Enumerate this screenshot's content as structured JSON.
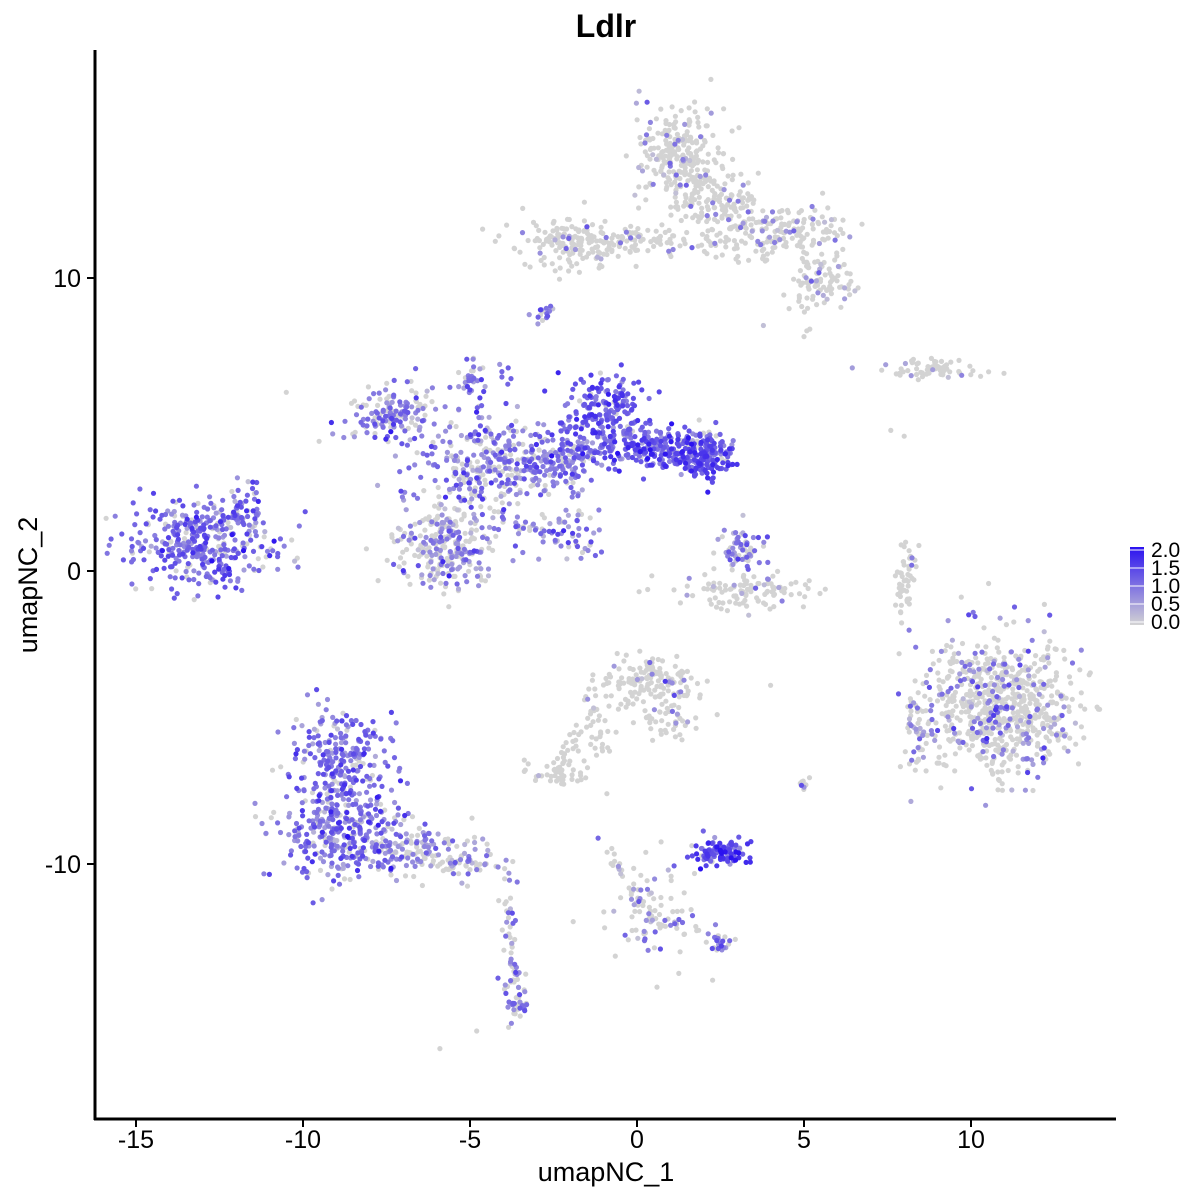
{
  "chart_data": {
    "type": "scatter",
    "title": "Ldlr",
    "xlabel": "umapNC_1",
    "ylabel": "umapNC_2",
    "xlim": [
      -16.3,
      14.4
    ],
    "ylim": [
      -18.5,
      17.7
    ],
    "x_ticks": [
      -15,
      -10,
      -5,
      0,
      5,
      10
    ],
    "x_tick_labels": [
      "-15",
      "-10",
      "-5",
      "0",
      "5",
      "10"
    ],
    "y_ticks": [
      -10,
      0,
      10
    ],
    "y_tick_labels": [
      "-10",
      "0",
      "10"
    ],
    "grid": false,
    "legend": {
      "position": "right",
      "type": "colorbar",
      "range": [
        0,
        2.0
      ],
      "ticks": [
        0.0,
        0.5,
        1.0,
        1.5,
        2.0
      ],
      "tick_labels": [
        "0.0",
        "0.5",
        "1.0",
        "1.5",
        "2.0"
      ],
      "low_color": "#d3d3d3",
      "high_color": "#2b12f0"
    },
    "clusters": [
      {
        "cx": -13.0,
        "cy": 1.0,
        "sx": 1.2,
        "sy": 0.9,
        "n": 380,
        "expr_frac": 0.85,
        "mean_expr": 1.1
      },
      {
        "cx": -11.8,
        "cy": 2.2,
        "sx": 0.3,
        "sy": 0.4,
        "n": 40,
        "expr_frac": 0.8,
        "mean_expr": 1.0
      },
      {
        "cx": -8.8,
        "cy": -6.5,
        "sx": 0.9,
        "sy": 1.2,
        "n": 260,
        "expr_frac": 0.85,
        "mean_expr": 1.0
      },
      {
        "cx": -8.8,
        "cy": -9.0,
        "sx": 1.2,
        "sy": 0.9,
        "n": 300,
        "expr_frac": 0.85,
        "mean_expr": 1.0
      },
      {
        "cx": -6.5,
        "cy": -9.5,
        "sx": 1.0,
        "sy": 0.5,
        "n": 90,
        "expr_frac": 0.5,
        "mean_expr": 0.8
      },
      {
        "cx": -4.9,
        "cy": -10.0,
        "sx": 0.5,
        "sy": 0.3,
        "n": 30,
        "expr_frac": 0.4,
        "mean_expr": 0.8
      },
      {
        "cx": -3.6,
        "cy": -14.5,
        "sx": 0.25,
        "sy": 0.7,
        "n": 40,
        "expr_frac": 0.6,
        "mean_expr": 0.9
      },
      {
        "cx": -3.8,
        "cy": -11.8,
        "sx": 0.2,
        "sy": 0.9,
        "n": 14,
        "expr_frac": 0.4,
        "mean_expr": 0.7
      },
      {
        "cx": -5.7,
        "cy": 1.0,
        "sx": 0.9,
        "sy": 0.9,
        "n": 280,
        "expr_frac": 0.45,
        "mean_expr": 0.8
      },
      {
        "cx": -7.2,
        "cy": 5.3,
        "sx": 0.9,
        "sy": 0.6,
        "n": 150,
        "expr_frac": 0.75,
        "mean_expr": 0.9
      },
      {
        "cx": -4.6,
        "cy": 3.5,
        "sx": 1.2,
        "sy": 0.8,
        "n": 240,
        "expr_frac": 0.7,
        "mean_expr": 0.9
      },
      {
        "cx": -1.0,
        "cy": 5.3,
        "sx": 0.7,
        "sy": 0.8,
        "n": 220,
        "expr_frac": 0.9,
        "mean_expr": 1.2
      },
      {
        "cx": -2.4,
        "cy": 3.7,
        "sx": 0.9,
        "sy": 0.6,
        "n": 160,
        "expr_frac": 0.8,
        "mean_expr": 1.0
      },
      {
        "cx": 0.5,
        "cy": 4.2,
        "sx": 0.9,
        "sy": 0.4,
        "n": 200,
        "expr_frac": 0.9,
        "mean_expr": 1.2
      },
      {
        "cx": 2.0,
        "cy": 4.0,
        "sx": 0.6,
        "sy": 0.5,
        "n": 180,
        "expr_frac": 0.9,
        "mean_expr": 1.3
      },
      {
        "cx": -5.0,
        "cy": 6.6,
        "sx": 0.2,
        "sy": 0.5,
        "n": 25,
        "expr_frac": 0.7,
        "mean_expr": 0.9
      },
      {
        "cx": -2.7,
        "cy": 8.8,
        "sx": 0.2,
        "sy": 0.25,
        "n": 15,
        "expr_frac": 0.8,
        "mean_expr": 1.0
      },
      {
        "cx": -2.0,
        "cy": 1.5,
        "sx": 0.6,
        "sy": 0.5,
        "n": 40,
        "expr_frac": 0.6,
        "mean_expr": 0.9
      },
      {
        "cx": 3.1,
        "cy": 0.8,
        "sx": 0.4,
        "sy": 0.5,
        "n": 60,
        "expr_frac": 0.6,
        "mean_expr": 0.9
      },
      {
        "cx": 3.2,
        "cy": -0.7,
        "sx": 1.2,
        "sy": 0.35,
        "n": 110,
        "expr_frac": 0.15,
        "mean_expr": 0.6
      },
      {
        "cx": 1.3,
        "cy": 14.2,
        "sx": 0.8,
        "sy": 1.1,
        "n": 260,
        "expr_frac": 0.15,
        "mean_expr": 0.7
      },
      {
        "cx": 2.6,
        "cy": 12.4,
        "sx": 0.7,
        "sy": 0.7,
        "n": 120,
        "expr_frac": 0.15,
        "mean_expr": 0.7
      },
      {
        "cx": 4.5,
        "cy": 11.5,
        "sx": 1.0,
        "sy": 0.6,
        "n": 160,
        "expr_frac": 0.15,
        "mean_expr": 0.7
      },
      {
        "cx": 5.5,
        "cy": 9.8,
        "sx": 0.7,
        "sy": 0.6,
        "n": 90,
        "expr_frac": 0.2,
        "mean_expr": 0.7
      },
      {
        "cx": -2.0,
        "cy": 11.2,
        "sx": 0.9,
        "sy": 0.6,
        "n": 140,
        "expr_frac": 0.1,
        "mean_expr": 0.7
      },
      {
        "cx": 0.0,
        "cy": 11.3,
        "sx": 1.0,
        "sy": 0.3,
        "n": 70,
        "expr_frac": 0.1,
        "mean_expr": 0.7
      },
      {
        "cx": 11.0,
        "cy": -4.6,
        "sx": 1.3,
        "sy": 1.3,
        "n": 720,
        "expr_frac": 0.22,
        "mean_expr": 0.9
      },
      {
        "cx": 8.5,
        "cy": -5.5,
        "sx": 0.4,
        "sy": 0.9,
        "n": 60,
        "expr_frac": 0.3,
        "mean_expr": 0.8
      },
      {
        "cx": 0.5,
        "cy": -3.8,
        "sx": 0.9,
        "sy": 0.5,
        "n": 150,
        "expr_frac": 0.12,
        "mean_expr": 0.8
      },
      {
        "cx": 1.0,
        "cy": -5.2,
        "sx": 0.4,
        "sy": 0.4,
        "n": 40,
        "expr_frac": 0.15,
        "mean_expr": 0.8
      },
      {
        "cx": -2.4,
        "cy": -6.9,
        "sx": 0.5,
        "sy": 0.25,
        "n": 50,
        "expr_frac": 0.05,
        "mean_expr": 0.7
      },
      {
        "cx": -1.2,
        "cy": -5.3,
        "sx": 0.3,
        "sy": 0.8,
        "n": 30,
        "expr_frac": 0.1,
        "mean_expr": 0.7
      },
      {
        "cx": 2.5,
        "cy": -9.6,
        "sx": 0.5,
        "sy": 0.25,
        "n": 110,
        "expr_frac": 0.95,
        "mean_expr": 1.4
      },
      {
        "cx": 0.5,
        "cy": -11.6,
        "sx": 1.0,
        "sy": 1.2,
        "n": 70,
        "expr_frac": 0.35,
        "mean_expr": 0.8
      },
      {
        "cx": 2.5,
        "cy": -12.7,
        "sx": 0.3,
        "sy": 0.2,
        "n": 20,
        "expr_frac": 0.7,
        "mean_expr": 0.9
      },
      {
        "cx": 9.0,
        "cy": 6.9,
        "sx": 1.0,
        "sy": 0.2,
        "n": 70,
        "expr_frac": 0.12,
        "mean_expr": 0.7
      },
      {
        "cx": 8.0,
        "cy": -0.2,
        "sx": 0.15,
        "sy": 1.0,
        "n": 30,
        "expr_frac": 0.05,
        "mean_expr": 0.6
      },
      {
        "cx": 5.0,
        "cy": -7.3,
        "sx": 0.15,
        "sy": 0.2,
        "n": 10,
        "expr_frac": 0.2,
        "mean_expr": 0.7
      }
    ],
    "trails": [
      {
        "from": [
          -4.5,
          2.0
        ],
        "to": [
          -1.2,
          0.6
        ],
        "n": 35,
        "expr_frac": 0.8,
        "mean_expr": 1.0
      },
      {
        "from": [
          -4.4,
          4.0
        ],
        "to": [
          -5.0,
          7.0
        ],
        "n": 25,
        "expr_frac": 0.8,
        "mean_expr": 1.0
      },
      {
        "from": [
          -3.6,
          4.2
        ],
        "to": [
          -4.0,
          7.3
        ],
        "n": 15,
        "expr_frac": 0.7,
        "mean_expr": 0.9
      },
      {
        "from": [
          -7.5,
          -9.6
        ],
        "to": [
          -4.3,
          -10.2
        ],
        "n": 40,
        "expr_frac": 0.4,
        "mean_expr": 0.8
      },
      {
        "from": [
          -3.9,
          -10.5
        ],
        "to": [
          -3.6,
          -15.0
        ],
        "n": 30,
        "expr_frac": 0.4,
        "mean_expr": 0.8
      },
      {
        "from": [
          -2.3,
          -6.5
        ],
        "to": [
          -1.2,
          -4.5
        ],
        "n": 25,
        "expr_frac": 0.05,
        "mean_expr": 0.6
      },
      {
        "from": [
          -0.8,
          -9.5
        ],
        "to": [
          0.2,
          -11.7
        ],
        "n": 25,
        "expr_frac": 0.3,
        "mean_expr": 0.8
      },
      {
        "from": [
          0.3,
          -11.8
        ],
        "to": [
          2.5,
          -12.6
        ],
        "n": 25,
        "expr_frac": 0.4,
        "mean_expr": 0.8
      },
      {
        "from": [
          -2.8,
          11.3
        ],
        "to": [
          4.0,
          11.0
        ],
        "n": 40,
        "expr_frac": 0.1,
        "mean_expr": 0.7
      },
      {
        "from": [
          8.3,
          0.8
        ],
        "to": [
          7.8,
          -1.2
        ],
        "n": 20,
        "expr_frac": 0.05,
        "mean_expr": 0.6
      }
    ],
    "outliers": [
      [
        -10.5,
        6.1
      ],
      [
        -5.9,
        -16.3
      ],
      [
        -4.8,
        -15.7
      ],
      [
        0.6,
        -14.2
      ],
      [
        4.0,
        -3.9
      ],
      [
        7.6,
        4.8
      ],
      [
        8.0,
        4.6
      ],
      [
        2.4,
        -4.9
      ],
      [
        5.0,
        8.0
      ],
      [
        -0.9,
        -7.6
      ]
    ]
  }
}
